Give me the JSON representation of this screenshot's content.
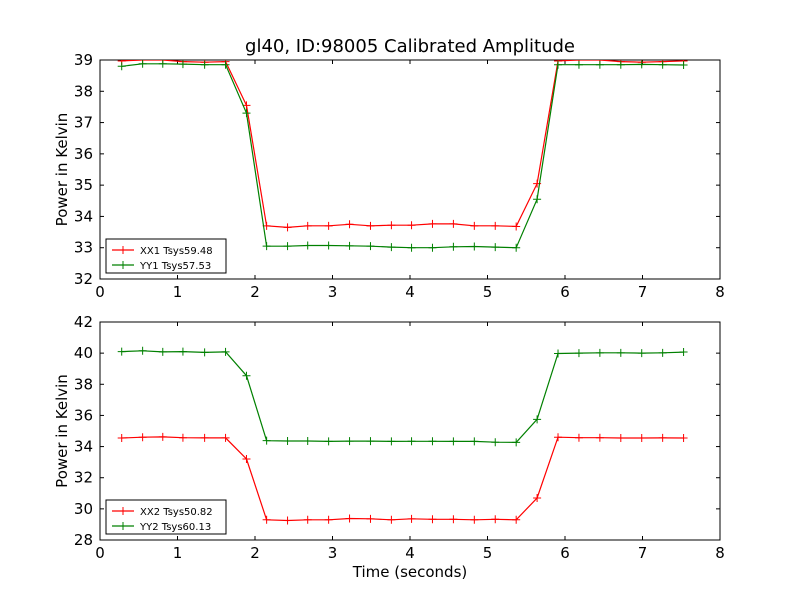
{
  "title": "gl40, ID:98005 Calibrated Amplitude",
  "colors": {
    "red": "#ff0000",
    "green": "#008000"
  },
  "chart_data": [
    {
      "type": "line",
      "title": "gl40, ID:98005 Calibrated Amplitude",
      "xlabel": "",
      "ylabel": "Power in Kelvin",
      "xlim": [
        0,
        8
      ],
      "ylim": [
        32,
        39
      ],
      "xticks": [
        "0",
        "1",
        "2",
        "3",
        "4",
        "5",
        "6",
        "7",
        "8"
      ],
      "yticks": [
        "32",
        "33",
        "34",
        "35",
        "36",
        "37",
        "38",
        "39"
      ],
      "grid": false,
      "legend_position": "lower-left",
      "x": [
        0.28,
        0.55,
        0.81,
        1.07,
        1.35,
        1.62,
        1.89,
        2.15,
        2.42,
        2.68,
        2.95,
        3.22,
        3.49,
        3.76,
        4.02,
        4.29,
        4.56,
        4.83,
        5.1,
        5.37,
        5.64,
        5.91,
        6.18,
        6.45,
        6.72,
        6.99,
        7.26,
        7.53
      ],
      "series": [
        {
          "name": "XX1 Tsys59.48",
          "color": "#ff0000",
          "values": [
            38.97,
            39.0,
            39.0,
            38.95,
            38.93,
            38.95,
            37.55,
            33.7,
            33.65,
            33.7,
            33.7,
            33.75,
            33.7,
            33.72,
            33.72,
            33.76,
            33.76,
            33.7,
            33.7,
            33.68,
            35.05,
            38.97,
            39.0,
            39.0,
            38.95,
            38.93,
            38.95,
            38.97
          ]
        },
        {
          "name": "YY1 Tsys57.53",
          "color": "#008000",
          "values": [
            38.8,
            38.88,
            38.88,
            38.87,
            38.85,
            38.85,
            37.3,
            33.05,
            33.05,
            33.07,
            33.07,
            33.06,
            33.05,
            33.02,
            33.0,
            33.0,
            33.03,
            33.04,
            33.02,
            33.0,
            34.55,
            38.85,
            38.85,
            38.85,
            38.85,
            38.86,
            38.85,
            38.84
          ]
        }
      ]
    },
    {
      "type": "line",
      "title": "",
      "xlabel": "Time (seconds)",
      "ylabel": "Power in Kelvin",
      "xlim": [
        0,
        8
      ],
      "ylim": [
        28,
        42
      ],
      "xticks": [
        "0",
        "1",
        "2",
        "3",
        "4",
        "5",
        "6",
        "7",
        "8"
      ],
      "yticks": [
        "28",
        "30",
        "32",
        "34",
        "36",
        "38",
        "40",
        "42"
      ],
      "grid": false,
      "legend_position": "lower-left",
      "x": [
        0.28,
        0.55,
        0.81,
        1.07,
        1.35,
        1.62,
        1.89,
        2.15,
        2.42,
        2.68,
        2.95,
        3.22,
        3.49,
        3.76,
        4.02,
        4.29,
        4.56,
        4.83,
        5.1,
        5.37,
        5.64,
        5.91,
        6.18,
        6.45,
        6.72,
        6.99,
        7.26,
        7.53
      ],
      "series": [
        {
          "name": "XX2 Tsys50.82",
          "color": "#ff0000",
          "values": [
            34.55,
            34.6,
            34.62,
            34.57,
            34.56,
            34.56,
            33.2,
            29.3,
            29.25,
            29.3,
            29.3,
            29.38,
            29.36,
            29.3,
            29.36,
            29.33,
            29.33,
            29.3,
            29.33,
            29.3,
            30.7,
            34.6,
            34.57,
            34.57,
            34.55,
            34.55,
            34.56,
            34.55
          ]
        },
        {
          "name": "YY2 Tsys60.13",
          "color": "#008000",
          "values": [
            40.1,
            40.15,
            40.08,
            40.1,
            40.05,
            40.08,
            38.55,
            34.38,
            34.36,
            34.36,
            34.33,
            34.35,
            34.35,
            34.33,
            34.34,
            34.34,
            34.33,
            34.33,
            34.28,
            34.27,
            35.75,
            39.98,
            40.0,
            40.02,
            40.02,
            40.0,
            40.02,
            40.07
          ]
        }
      ]
    }
  ]
}
